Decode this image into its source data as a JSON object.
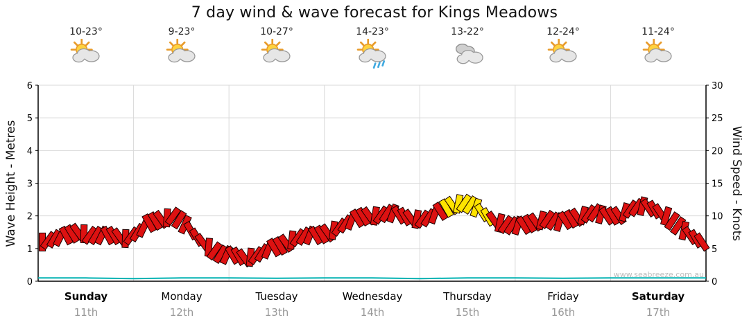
{
  "chart_data": {
    "type": "line",
    "title": "7 day wind & wave forecast for Kings Meadows",
    "watermark": "www.seabreeze.com.au",
    "ylabel_left": "Wave Height - Metres",
    "ylabel_right": "Wind Speed - Knots",
    "ylim_left": [
      0,
      6
    ],
    "ylim_right": [
      0,
      30
    ],
    "left_ticks": [
      0,
      1,
      2,
      3,
      4,
      5,
      6
    ],
    "right_ticks": [
      0,
      5,
      10,
      15,
      20,
      25,
      30
    ],
    "grid": true,
    "legend": false,
    "colors": {
      "wind_light": "#dd1111",
      "wind_moderate": "#ffe400",
      "wind_outline": "#1a0000",
      "wave": "#00b2b2",
      "gridline": "#d9d9d9",
      "axis": "#000000"
    },
    "days": [
      {
        "name": "Sunday",
        "date": "11th",
        "temp": "10-23°",
        "icon": "partly-cloudy",
        "weekend": true
      },
      {
        "name": "Monday",
        "date": "12th",
        "temp": "9-23°",
        "icon": "partly-cloudy",
        "weekend": false
      },
      {
        "name": "Tuesday",
        "date": "13th",
        "temp": "10-27°",
        "icon": "partly-cloudy",
        "weekend": false
      },
      {
        "name": "Wednesday",
        "date": "14th",
        "temp": "14-23°",
        "icon": "showers",
        "weekend": false
      },
      {
        "name": "Thursday",
        "date": "15th",
        "temp": "13-22°",
        "icon": "cloudy",
        "weekend": false
      },
      {
        "name": "Friday",
        "date": "16th",
        "temp": "12-24°",
        "icon": "partly-cloudy",
        "weekend": false
      },
      {
        "name": "Saturday",
        "date": "17th",
        "temp": "11-24°",
        "icon": "partly-cloudy",
        "weekend": true
      }
    ],
    "wind_series": {
      "name": "Wind Speed",
      "units": "knots",
      "points_per_day": 8,
      "values": [
        6,
        6.5,
        7,
        7.5,
        7,
        7,
        7,
        6.5,
        7.5,
        9,
        9.5,
        10,
        8.5,
        6.5,
        5,
        4,
        4,
        3.5,
        4,
        5,
        5.5,
        6.5,
        7,
        7,
        7.5,
        8.5,
        9.5,
        10,
        10,
        10.5,
        10,
        9.5,
        9.5,
        10.5,
        11.5,
        12,
        11.5,
        10,
        9,
        8.5,
        8.5,
        9,
        9.5,
        9,
        9.5,
        10,
        10.5,
        10,
        10,
        11,
        11.5,
        11,
        10,
        8.5,
        7,
        6
      ],
      "yellow_indices": [
        34,
        35,
        36,
        37
      ]
    },
    "wave_series": {
      "name": "Wave Height",
      "units": "metres",
      "values": [
        0.1,
        0.1,
        0.08,
        0.1,
        0.1,
        0.09,
        0.1,
        0.1,
        0.08,
        0.1,
        0.1,
        0.09,
        0.1,
        0.1,
        0.1
      ]
    }
  }
}
